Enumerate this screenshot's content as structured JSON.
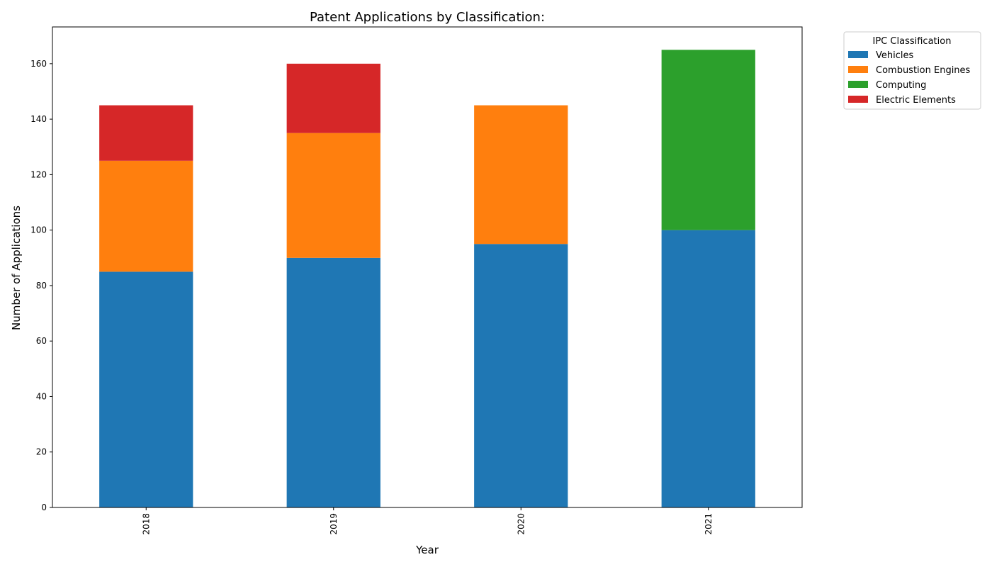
{
  "chart_data": {
    "type": "bar",
    "stacked": true,
    "title": "Patent Applications by Classification:",
    "xlabel": "Year",
    "ylabel": "Number of Applications",
    "categories": [
      "2018",
      "2019",
      "2020",
      "2021"
    ],
    "yticks": [
      0,
      20,
      40,
      60,
      80,
      100,
      120,
      140,
      160
    ],
    "ylim": [
      0,
      173.25
    ],
    "grid": false,
    "legend": {
      "title": "IPC Classification",
      "placement": "outside-top-right"
    },
    "series": [
      {
        "name": "Vehicles",
        "color": "#1f77b4",
        "values": [
          85,
          90,
          95,
          100
        ]
      },
      {
        "name": "Combustion Engines",
        "color": "#ff7f0e",
        "values": [
          40,
          45,
          50,
          0
        ]
      },
      {
        "name": "Computing",
        "color": "#2ca02c",
        "values": [
          0,
          0,
          0,
          65
        ]
      },
      {
        "name": "Electric Elements",
        "color": "#d62728",
        "values": [
          20,
          25,
          0,
          0
        ]
      }
    ]
  }
}
